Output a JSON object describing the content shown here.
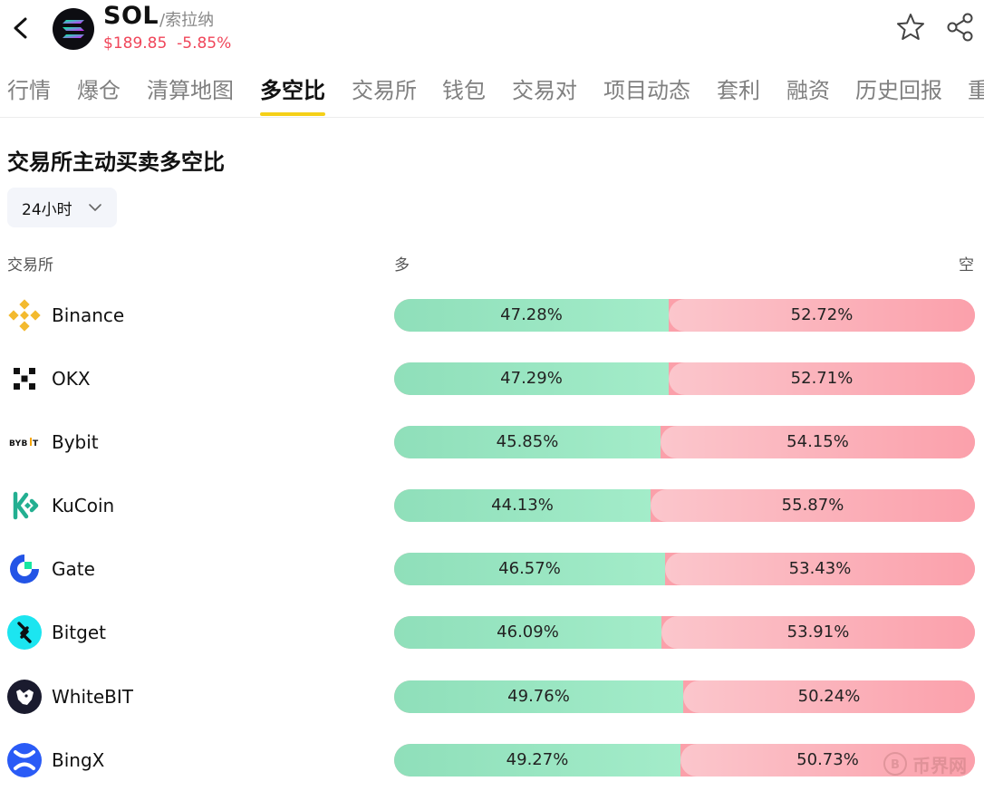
{
  "header": {
    "back_icon": "chevron-left-icon",
    "coin_logo": "solana-logo",
    "symbol": "SOL",
    "name": "/索拉纳",
    "price": "$189.85",
    "change": "-5.85%",
    "change_color": "#f0465a",
    "favorite_icon": "star-outline-icon",
    "share_icon": "share-icon"
  },
  "tabs": [
    {
      "label": "行情"
    },
    {
      "label": "爆仓"
    },
    {
      "label": "清算地图"
    },
    {
      "label": "多空比",
      "active": true
    },
    {
      "label": "交易所"
    },
    {
      "label": "钱包"
    },
    {
      "label": "交易对"
    },
    {
      "label": "项目动态"
    },
    {
      "label": "套利"
    },
    {
      "label": "融资"
    },
    {
      "label": "历史回报"
    },
    {
      "label": "重"
    }
  ],
  "section": {
    "title": "交易所主动买卖多空比",
    "period": "24小时",
    "period_icon": "chevron-down-icon"
  },
  "columns": {
    "exchange": "交易所",
    "long": "多",
    "short": "空"
  },
  "colors": {
    "long": "#a3ecc9",
    "short": "#fba0ab",
    "accent": "#f5d018"
  },
  "rows": [
    {
      "exchange": "Binance",
      "icon": "binance-logo",
      "long_pct": "47.28%",
      "short_pct": "52.72%",
      "long": 47.28
    },
    {
      "exchange": "OKX",
      "icon": "okx-logo",
      "long_pct": "47.29%",
      "short_pct": "52.71%",
      "long": 47.29
    },
    {
      "exchange": "Bybit",
      "icon": "bybit-logo",
      "long_pct": "45.85%",
      "short_pct": "54.15%",
      "long": 45.85
    },
    {
      "exchange": "KuCoin",
      "icon": "kucoin-logo",
      "long_pct": "44.13%",
      "short_pct": "55.87%",
      "long": 44.13
    },
    {
      "exchange": "Gate",
      "icon": "gate-logo",
      "long_pct": "46.57%",
      "short_pct": "53.43%",
      "long": 46.57
    },
    {
      "exchange": "Bitget",
      "icon": "bitget-logo",
      "long_pct": "46.09%",
      "short_pct": "53.91%",
      "long": 46.09
    },
    {
      "exchange": "WhiteBIT",
      "icon": "whitebit-logo",
      "long_pct": "49.76%",
      "short_pct": "50.24%",
      "long": 49.76
    },
    {
      "exchange": "BingX",
      "icon": "bingx-logo",
      "long_pct": "49.27%",
      "short_pct": "50.73%",
      "long": 49.27
    }
  ],
  "watermark": "币界网"
}
